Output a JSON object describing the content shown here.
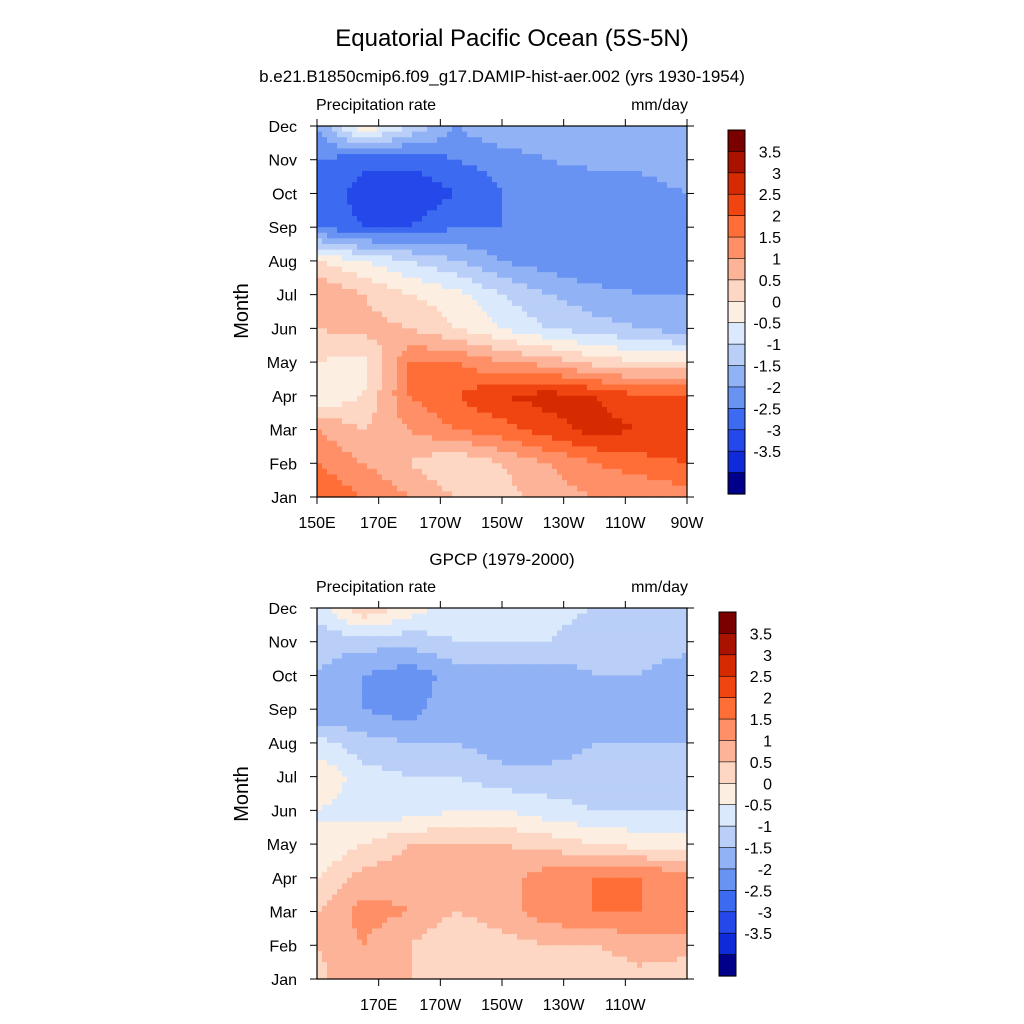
{
  "figure": {
    "title": "Equatorial Pacific Ocean (5S-5N)"
  },
  "chart_data": [
    {
      "type": "heatmap",
      "title": "b.e21.B1850cmip6.f09_g17.DAMIP-hist-aer.002 (yrs 1930-1954)",
      "left_label": "Precipitation rate",
      "right_label": "mm/day",
      "ylabel": "Month",
      "xlabel": "",
      "x_ticks": [
        "150E",
        "170E",
        "170W",
        "150W",
        "130W",
        "110W",
        "90W"
      ],
      "x_tick_values": [
        150,
        170,
        190,
        210,
        230,
        250,
        270
      ],
      "y_ticks": [
        "Jan",
        "Feb",
        "Mar",
        "Apr",
        "May",
        "Jun",
        "Jul",
        "Aug",
        "Sep",
        "Oct",
        "Nov",
        "Dec"
      ],
      "xlim": [
        150,
        270
      ],
      "ylim": [
        1,
        12
      ],
      "x": [
        150,
        165,
        180,
        195,
        210,
        225,
        240,
        255,
        270
      ],
      "y": [
        1,
        2,
        3,
        4,
        5,
        6,
        7,
        8,
        9,
        10,
        11,
        12
      ],
      "values": [
        [
          2.5,
          2.0,
          1.5,
          1.0,
          0.8,
          1.2,
          1.5,
          1.5,
          1.8
        ],
        [
          2.0,
          1.5,
          1.0,
          0.5,
          1.0,
          1.5,
          2.0,
          2.3,
          2.5
        ],
        [
          1.5,
          1.0,
          1.5,
          2.0,
          2.3,
          2.8,
          3.2,
          3.0,
          3.0
        ],
        [
          0.0,
          0.5,
          2.0,
          2.5,
          3.0,
          3.2,
          3.0,
          2.5,
          2.5
        ],
        [
          0.5,
          0.3,
          2.0,
          2.0,
          1.5,
          1.3,
          0.8,
          0.5,
          0.5
        ],
        [
          1.0,
          1.2,
          1.0,
          0.5,
          0.0,
          -0.5,
          -0.8,
          -1.0,
          -1.3
        ],
        [
          1.5,
          1.0,
          0.5,
          0.2,
          -0.5,
          -1.0,
          -1.3,
          -1.5,
          -1.5
        ],
        [
          0.5,
          0.0,
          -0.5,
          -1.0,
          -1.5,
          -1.8,
          -2.0,
          -2.0,
          -2.0
        ],
        [
          -2.0,
          -2.5,
          -2.5,
          -2.0,
          -2.0,
          -2.0,
          -2.0,
          -2.0,
          -2.0
        ],
        [
          -2.0,
          -2.8,
          -3.0,
          -2.5,
          -2.0,
          -2.0,
          -2.0,
          -1.8,
          -1.5
        ],
        [
          -2.0,
          -2.3,
          -2.3,
          -2.0,
          -1.8,
          -1.5,
          -1.3,
          -1.3,
          -1.0
        ],
        [
          -1.5,
          0.5,
          -0.5,
          -1.5,
          -1.0,
          -1.0,
          -1.0,
          -1.0,
          -1.0
        ]
      ]
    },
    {
      "type": "heatmap",
      "title": "GPCP (1979-2000)",
      "left_label": "Precipitation rate",
      "right_label": "mm/day",
      "ylabel": "Month",
      "xlabel": "",
      "x_ticks": [
        "170E",
        "170W",
        "150W",
        "130W",
        "110W"
      ],
      "x_tick_values": [
        170,
        190,
        210,
        230,
        250
      ],
      "y_ticks": [
        "Jan",
        "Feb",
        "Mar",
        "Apr",
        "May",
        "Jun",
        "Jul",
        "Aug",
        "Sep",
        "Oct",
        "Nov",
        "Dec"
      ],
      "xlim": [
        150,
        270
      ],
      "ylim": [
        1,
        12
      ],
      "x": [
        150,
        165,
        180,
        195,
        210,
        225,
        240,
        255,
        270
      ],
      "y": [
        1,
        2,
        3,
        4,
        5,
        6,
        7,
        8,
        9,
        10,
        11,
        12
      ],
      "values": [
        [
          0.8,
          1.5,
          1.0,
          0.5,
          0.5,
          0.5,
          0.5,
          0.8,
          0.5
        ],
        [
          1.0,
          1.5,
          1.0,
          0.5,
          0.8,
          1.0,
          1.0,
          1.3,
          1.3
        ],
        [
          1.0,
          1.7,
          1.5,
          1.0,
          1.3,
          1.8,
          2.0,
          2.0,
          1.8
        ],
        [
          0.5,
          1.2,
          1.3,
          1.0,
          1.3,
          1.8,
          2.0,
          2.0,
          1.8
        ],
        [
          0.0,
          0.5,
          1.0,
          1.0,
          1.0,
          0.8,
          0.5,
          0.3,
          0.3
        ],
        [
          0.0,
          -0.3,
          -0.3,
          0.0,
          0.0,
          -0.3,
          -0.5,
          -0.5,
          -0.5
        ],
        [
          0.5,
          -0.3,
          -0.5,
          -0.5,
          -0.8,
          -0.8,
          -0.8,
          -0.8,
          -0.8
        ],
        [
          -0.3,
          -0.8,
          -1.0,
          -1.0,
          -1.3,
          -1.3,
          -1.0,
          -1.0,
          -1.0
        ],
        [
          -1.5,
          -1.5,
          -1.8,
          -1.0,
          -1.3,
          -1.3,
          -1.3,
          -1.0,
          -1.3
        ],
        [
          -1.0,
          -1.5,
          -1.8,
          -1.3,
          -1.3,
          -1.3,
          -1.0,
          -1.0,
          -1.3
        ],
        [
          -0.8,
          -0.8,
          -0.8,
          -0.5,
          -0.5,
          -0.5,
          -0.8,
          -0.8,
          -0.8
        ],
        [
          -0.3,
          1.0,
          0.3,
          -0.3,
          -0.3,
          -0.3,
          -0.5,
          -0.5,
          -0.8
        ]
      ]
    }
  ],
  "colorbar": {
    "labels": [
      "3.5",
      "3",
      "2.5",
      "2",
      "1.5",
      "1",
      "0.5",
      "0",
      "-0.5",
      "-1",
      "-1.5",
      "-2",
      "-2.5",
      "-3",
      "-3.5"
    ],
    "levels": [
      3.5,
      3,
      2.5,
      2,
      1.5,
      1,
      0.5,
      0,
      -0.5,
      -1,
      -1.5,
      -2,
      -2.5,
      -3,
      -3.5
    ],
    "colors_top_to_bottom": [
      "#7a0000",
      "#aa1200",
      "#d62a00",
      "#f04510",
      "#ff6e36",
      "#ff8f66",
      "#fcb398",
      "#fdd6c4",
      "#fdeee2",
      "#dbe9fc",
      "#b9cff8",
      "#91b3f6",
      "#6893f2",
      "#3c6af0",
      "#2548ea",
      "#0f2bd9",
      "#00008a"
    ]
  }
}
